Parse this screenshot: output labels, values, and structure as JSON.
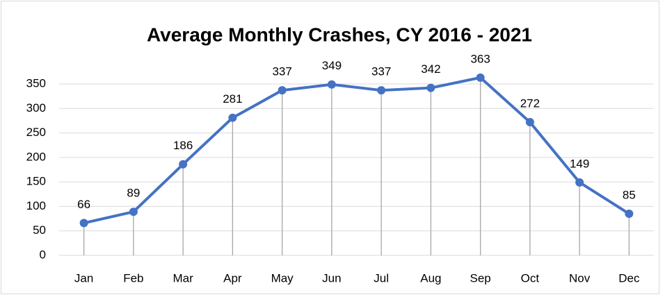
{
  "chart_data": {
    "type": "line",
    "title": "Average Monthly Crashes, CY 2016 - 2021",
    "categories": [
      "Jan",
      "Feb",
      "Mar",
      "Apr",
      "May",
      "Jun",
      "Jul",
      "Aug",
      "Sep",
      "Oct",
      "Nov",
      "Dec"
    ],
    "values": [
      66,
      89,
      186,
      281,
      337,
      349,
      337,
      342,
      363,
      272,
      149,
      85
    ],
    "color": "#4472c4",
    "ylim": [
      0,
      350
    ],
    "yticks": [
      0,
      50,
      100,
      150,
      200,
      250,
      300,
      350
    ],
    "grid": true,
    "drop_lines": true
  }
}
